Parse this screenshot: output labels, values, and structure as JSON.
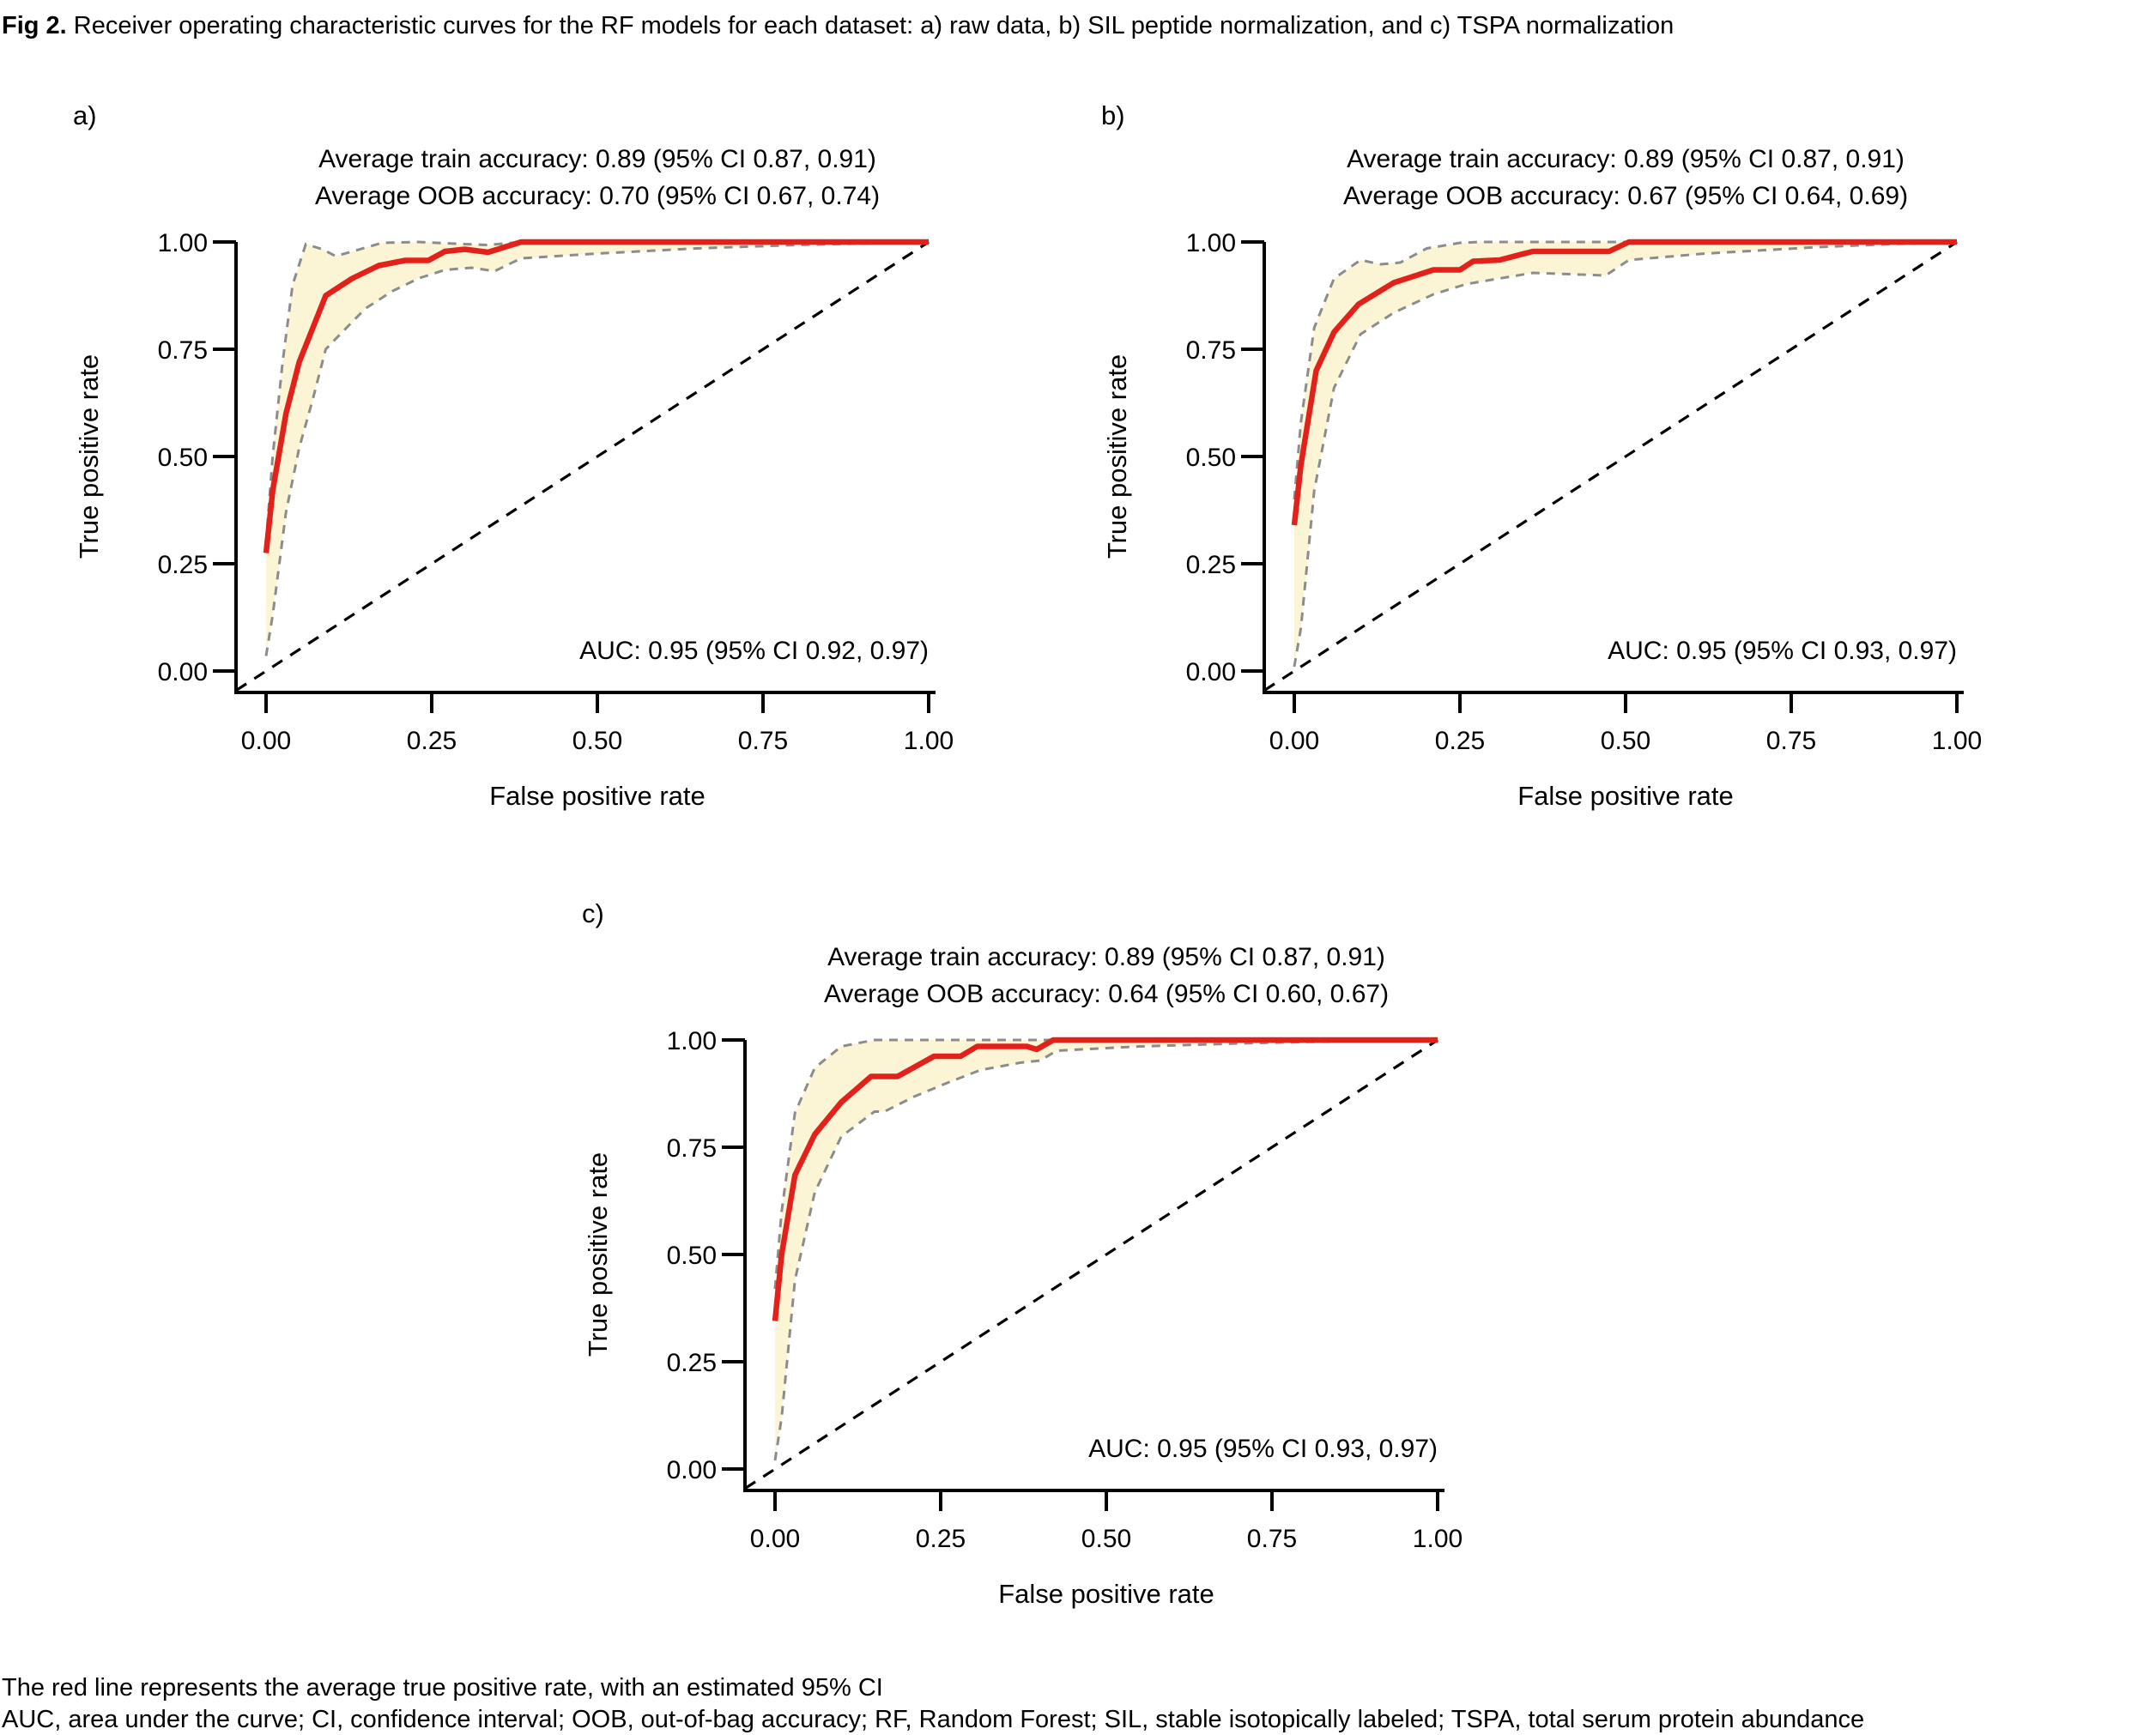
{
  "figure": {
    "caption_label": "Fig 2.",
    "caption_text": " Receiver operating characteristic curves for the RF models for each dataset: a) raw data, b) SIL peptide normalization, and c) TSPA normalization",
    "footnote_line1": "The red line represents the average true positive rate, with an estimated 95% CI",
    "footnote_line2": "AUC, area under the curve; CI, confidence interval; OOB, out-of-bag accuracy; RF, Random Forest; SIL, stable isotopically labeled; TSPA, total serum protein abundance"
  },
  "colors": {
    "roc_line": "#e3211b",
    "ci_band_fill": "#fcf5d5",
    "ci_border": "#8c8c8c",
    "chance_line": "#000000",
    "axis": "#000000"
  },
  "chart_data": [
    {
      "id": "a",
      "type": "line",
      "panel_label": "a)",
      "title_lines": [
        "Average train accuracy: 0.89 (95% CI 0.87, 0.91)",
        "Average OOB accuracy: 0.70 (95% CI 0.67, 0.74)"
      ],
      "auc_label": "AUC: 0.95 (95% CI 0.92, 0.97)",
      "xlabel": "False positive rate",
      "ylabel": "True positive rate",
      "xlim": [
        0,
        1
      ],
      "ylim": [
        0,
        1
      ],
      "xticks": [
        "0.00",
        "0.25",
        "0.50",
        "0.75",
        "1.00"
      ],
      "yticks": [
        "0.00",
        "0.25",
        "0.50",
        "0.75",
        "1.00"
      ],
      "grid": false,
      "legend": "none",
      "series": [
        {
          "name": "mean_roc",
          "points": [
            [
              0,
              0.275
            ],
            [
              0.01,
              0.42
            ],
            [
              0.03,
              0.6
            ],
            [
              0.05,
              0.72
            ],
            [
              0.09,
              0.875
            ],
            [
              0.13,
              0.915
            ],
            [
              0.17,
              0.945
            ],
            [
              0.21,
              0.957
            ],
            [
              0.245,
              0.957
            ],
            [
              0.27,
              0.978
            ],
            [
              0.3,
              0.983
            ],
            [
              0.335,
              0.976
            ],
            [
              0.385,
              1.0
            ],
            [
              1,
              1.0
            ]
          ]
        },
        {
          "name": "ci_upper",
          "points": [
            [
              0,
              0.3
            ],
            [
              0.01,
              0.5
            ],
            [
              0.025,
              0.72
            ],
            [
              0.04,
              0.9
            ],
            [
              0.06,
              0.995
            ],
            [
              0.085,
              0.983
            ],
            [
              0.105,
              0.967
            ],
            [
              0.135,
              0.98
            ],
            [
              0.175,
              0.998
            ],
            [
              0.23,
              1.0
            ],
            [
              0.3,
              0.995
            ],
            [
              0.335,
              0.993
            ],
            [
              0.385,
              1.0
            ],
            [
              1,
              1.0
            ]
          ]
        },
        {
          "name": "ci_lower",
          "points": [
            [
              0,
              0.035
            ],
            [
              0.01,
              0.13
            ],
            [
              0.03,
              0.37
            ],
            [
              0.05,
              0.52
            ],
            [
              0.07,
              0.63
            ],
            [
              0.09,
              0.75
            ],
            [
              0.115,
              0.79
            ],
            [
              0.15,
              0.845
            ],
            [
              0.19,
              0.885
            ],
            [
              0.23,
              0.915
            ],
            [
              0.27,
              0.935
            ],
            [
              0.31,
              0.94
            ],
            [
              0.345,
              0.932
            ],
            [
              0.385,
              0.962
            ],
            [
              0.5,
              0.973
            ],
            [
              0.65,
              0.985
            ],
            [
              0.8,
              0.993
            ],
            [
              1,
              1.0
            ]
          ]
        },
        {
          "name": "chance_diagonal",
          "points": [
            [
              -0.045,
              -0.045
            ],
            [
              1,
              1
            ]
          ]
        }
      ]
    },
    {
      "id": "b",
      "type": "line",
      "panel_label": "b)",
      "title_lines": [
        "Average train accuracy: 0.89 (95% CI 0.87, 0.91)",
        "Average OOB accuracy: 0.67 (95% CI 0.64, 0.69)"
      ],
      "auc_label": "AUC: 0.95 (95% CI 0.93, 0.97)",
      "xlabel": "False positive rate",
      "ylabel": "True positive rate",
      "xlim": [
        0,
        1
      ],
      "ylim": [
        0,
        1
      ],
      "xticks": [
        "0.00",
        "0.25",
        "0.50",
        "0.75",
        "1.00"
      ],
      "yticks": [
        "0.00",
        "0.25",
        "0.50",
        "0.75",
        "1.00"
      ],
      "grid": false,
      "legend": "none",
      "series": [
        {
          "name": "mean_roc",
          "points": [
            [
              0,
              0.34
            ],
            [
              0.01,
              0.48
            ],
            [
              0.033,
              0.7
            ],
            [
              0.06,
              0.79
            ],
            [
              0.097,
              0.855
            ],
            [
              0.15,
              0.905
            ],
            [
              0.21,
              0.935
            ],
            [
              0.25,
              0.935
            ],
            [
              0.27,
              0.955
            ],
            [
              0.31,
              0.958
            ],
            [
              0.36,
              0.978
            ],
            [
              0.475,
              0.978
            ],
            [
              0.505,
              1.0
            ],
            [
              1,
              1.0
            ]
          ]
        },
        {
          "name": "ci_upper",
          "points": [
            [
              0,
              0.4
            ],
            [
              0.01,
              0.58
            ],
            [
              0.03,
              0.8
            ],
            [
              0.06,
              0.915
            ],
            [
              0.1,
              0.958
            ],
            [
              0.13,
              0.948
            ],
            [
              0.16,
              0.952
            ],
            [
              0.2,
              0.985
            ],
            [
              0.25,
              0.998
            ],
            [
              0.28,
              1.0
            ],
            [
              1,
              1.0
            ]
          ]
        },
        {
          "name": "ci_lower",
          "points": [
            [
              0,
              0.01
            ],
            [
              0.01,
              0.1
            ],
            [
              0.03,
              0.42
            ],
            [
              0.06,
              0.66
            ],
            [
              0.1,
              0.785
            ],
            [
              0.15,
              0.835
            ],
            [
              0.21,
              0.878
            ],
            [
              0.26,
              0.902
            ],
            [
              0.31,
              0.915
            ],
            [
              0.36,
              0.928
            ],
            [
              0.47,
              0.922
            ],
            [
              0.505,
              0.958
            ],
            [
              0.62,
              0.973
            ],
            [
              0.79,
              0.988
            ],
            [
              0.9,
              0.995
            ],
            [
              1,
              1.0
            ]
          ]
        },
        {
          "name": "chance_diagonal",
          "points": [
            [
              -0.045,
              -0.045
            ],
            [
              1,
              1
            ]
          ]
        }
      ]
    },
    {
      "id": "c",
      "type": "line",
      "panel_label": "c)",
      "title_lines": [
        "Average train accuracy: 0.89 (95% CI 0.87, 0.91)",
        "Average OOB accuracy: 0.64 (95% CI 0.60, 0.67)"
      ],
      "auc_label": "AUC: 0.95 (95% CI 0.93, 0.97)",
      "xlabel": "False positive rate",
      "ylabel": "True positive rate",
      "xlim": [
        0,
        1
      ],
      "ylim": [
        0,
        1
      ],
      "xticks": [
        "0.00",
        "0.25",
        "0.50",
        "0.75",
        "1.00"
      ],
      "yticks": [
        "0.00",
        "0.25",
        "0.50",
        "0.75",
        "1.00"
      ],
      "grid": false,
      "legend": "none",
      "series": [
        {
          "name": "mean_roc",
          "points": [
            [
              0,
              0.345
            ],
            [
              0.01,
              0.5
            ],
            [
              0.03,
              0.685
            ],
            [
              0.06,
              0.78
            ],
            [
              0.1,
              0.855
            ],
            [
              0.145,
              0.915
            ],
            [
              0.185,
              0.915
            ],
            [
              0.24,
              0.962
            ],
            [
              0.28,
              0.962
            ],
            [
              0.305,
              0.985
            ],
            [
              0.38,
              0.985
            ],
            [
              0.395,
              0.978
            ],
            [
              0.42,
              1.0
            ],
            [
              1,
              1.0
            ]
          ]
        },
        {
          "name": "ci_upper",
          "points": [
            [
              0,
              0.42
            ],
            [
              0.01,
              0.6
            ],
            [
              0.03,
              0.83
            ],
            [
              0.06,
              0.935
            ],
            [
              0.1,
              0.985
            ],
            [
              0.15,
              1.0
            ],
            [
              0.42,
              1.0
            ],
            [
              1,
              1.0
            ]
          ]
        },
        {
          "name": "ci_lower",
          "points": [
            [
              0,
              0.02
            ],
            [
              0.01,
              0.12
            ],
            [
              0.03,
              0.44
            ],
            [
              0.06,
              0.645
            ],
            [
              0.1,
              0.775
            ],
            [
              0.15,
              0.833
            ],
            [
              0.165,
              0.833
            ],
            [
              0.21,
              0.868
            ],
            [
              0.26,
              0.9
            ],
            [
              0.31,
              0.93
            ],
            [
              0.37,
              0.947
            ],
            [
              0.4,
              0.952
            ],
            [
              0.425,
              0.975
            ],
            [
              0.55,
              0.985
            ],
            [
              0.7,
              0.992
            ],
            [
              0.85,
              0.997
            ],
            [
              1,
              1.0
            ]
          ]
        },
        {
          "name": "chance_diagonal",
          "points": [
            [
              -0.045,
              -0.045
            ],
            [
              1,
              1
            ]
          ]
        }
      ]
    }
  ]
}
